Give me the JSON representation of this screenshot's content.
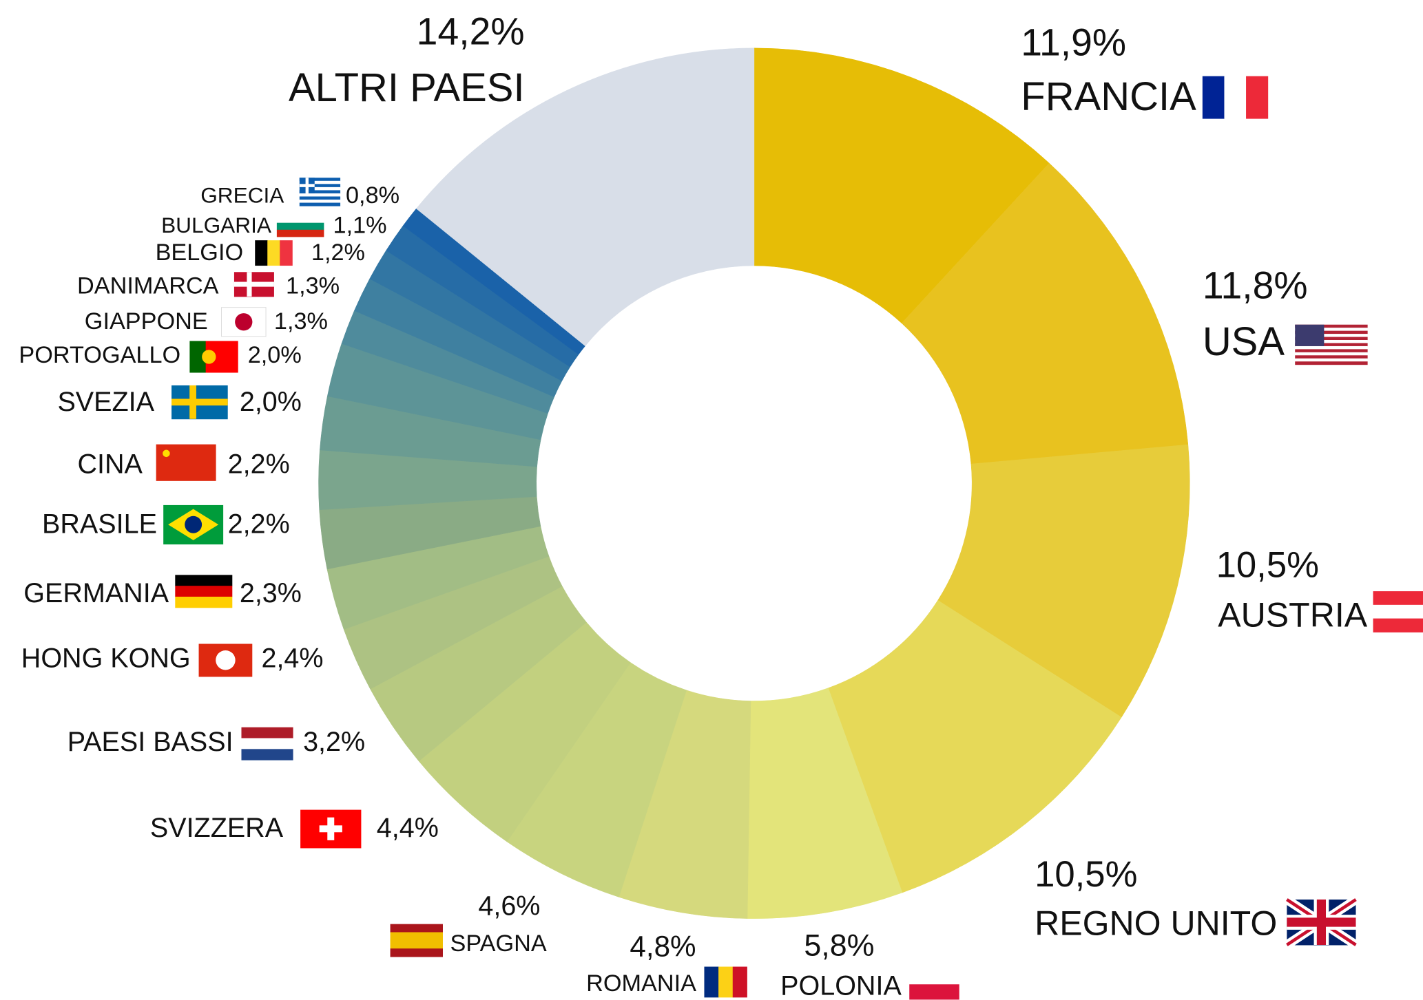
{
  "chart_data": {
    "type": "pie",
    "donut": true,
    "categories": [
      "FRANCIA",
      "USA",
      "AUSTRIA",
      "REGNO UNITO",
      "POLONIA",
      "ROMANIA",
      "SPAGNA",
      "SVIZZERA",
      "PAESI BASSI",
      "HONG KONG",
      "GERMANIA",
      "BRASILE",
      "CINA",
      "SVEZIA",
      "PORTOGALLO",
      "GIAPPONE",
      "DANIMARCA",
      "BELGIO",
      "BULGARIA",
      "GRECIA",
      "ALTRI PAESI"
    ],
    "values": [
      11.9,
      11.8,
      10.5,
      10.5,
      5.8,
      4.8,
      4.6,
      4.4,
      3.2,
      2.4,
      2.3,
      2.2,
      2.2,
      2.0,
      2.0,
      1.3,
      1.3,
      1.2,
      1.1,
      0.8,
      14.2
    ],
    "value_labels": [
      "11,9%",
      "11,8%",
      "10,5%",
      "10,5%",
      "5,8%",
      "4,8%",
      "4,6%",
      "4,4%",
      "3,2%",
      "2,4%",
      "2,3%",
      "2,2%",
      "2,2%",
      "2,0%",
      "2,0%",
      "1,3%",
      "1,3%",
      "1,2%",
      "1,1%",
      "0,8%",
      "14,2%"
    ],
    "colors": [
      "#e6bd06",
      "#e8c21f",
      "#e7cc3a",
      "#e6d958",
      "#e3e47a",
      "#d5d97d",
      "#c8d47f",
      "#c2d07f",
      "#b7c981",
      "#adc283",
      "#a2bd85",
      "#8aab85",
      "#7ba58d",
      "#6b9c92",
      "#5d9497",
      "#4f8b9c",
      "#3f80a0",
      "#3276a3",
      "#266ca6",
      "#1a62a9",
      "#d8dee8"
    ]
  }
}
